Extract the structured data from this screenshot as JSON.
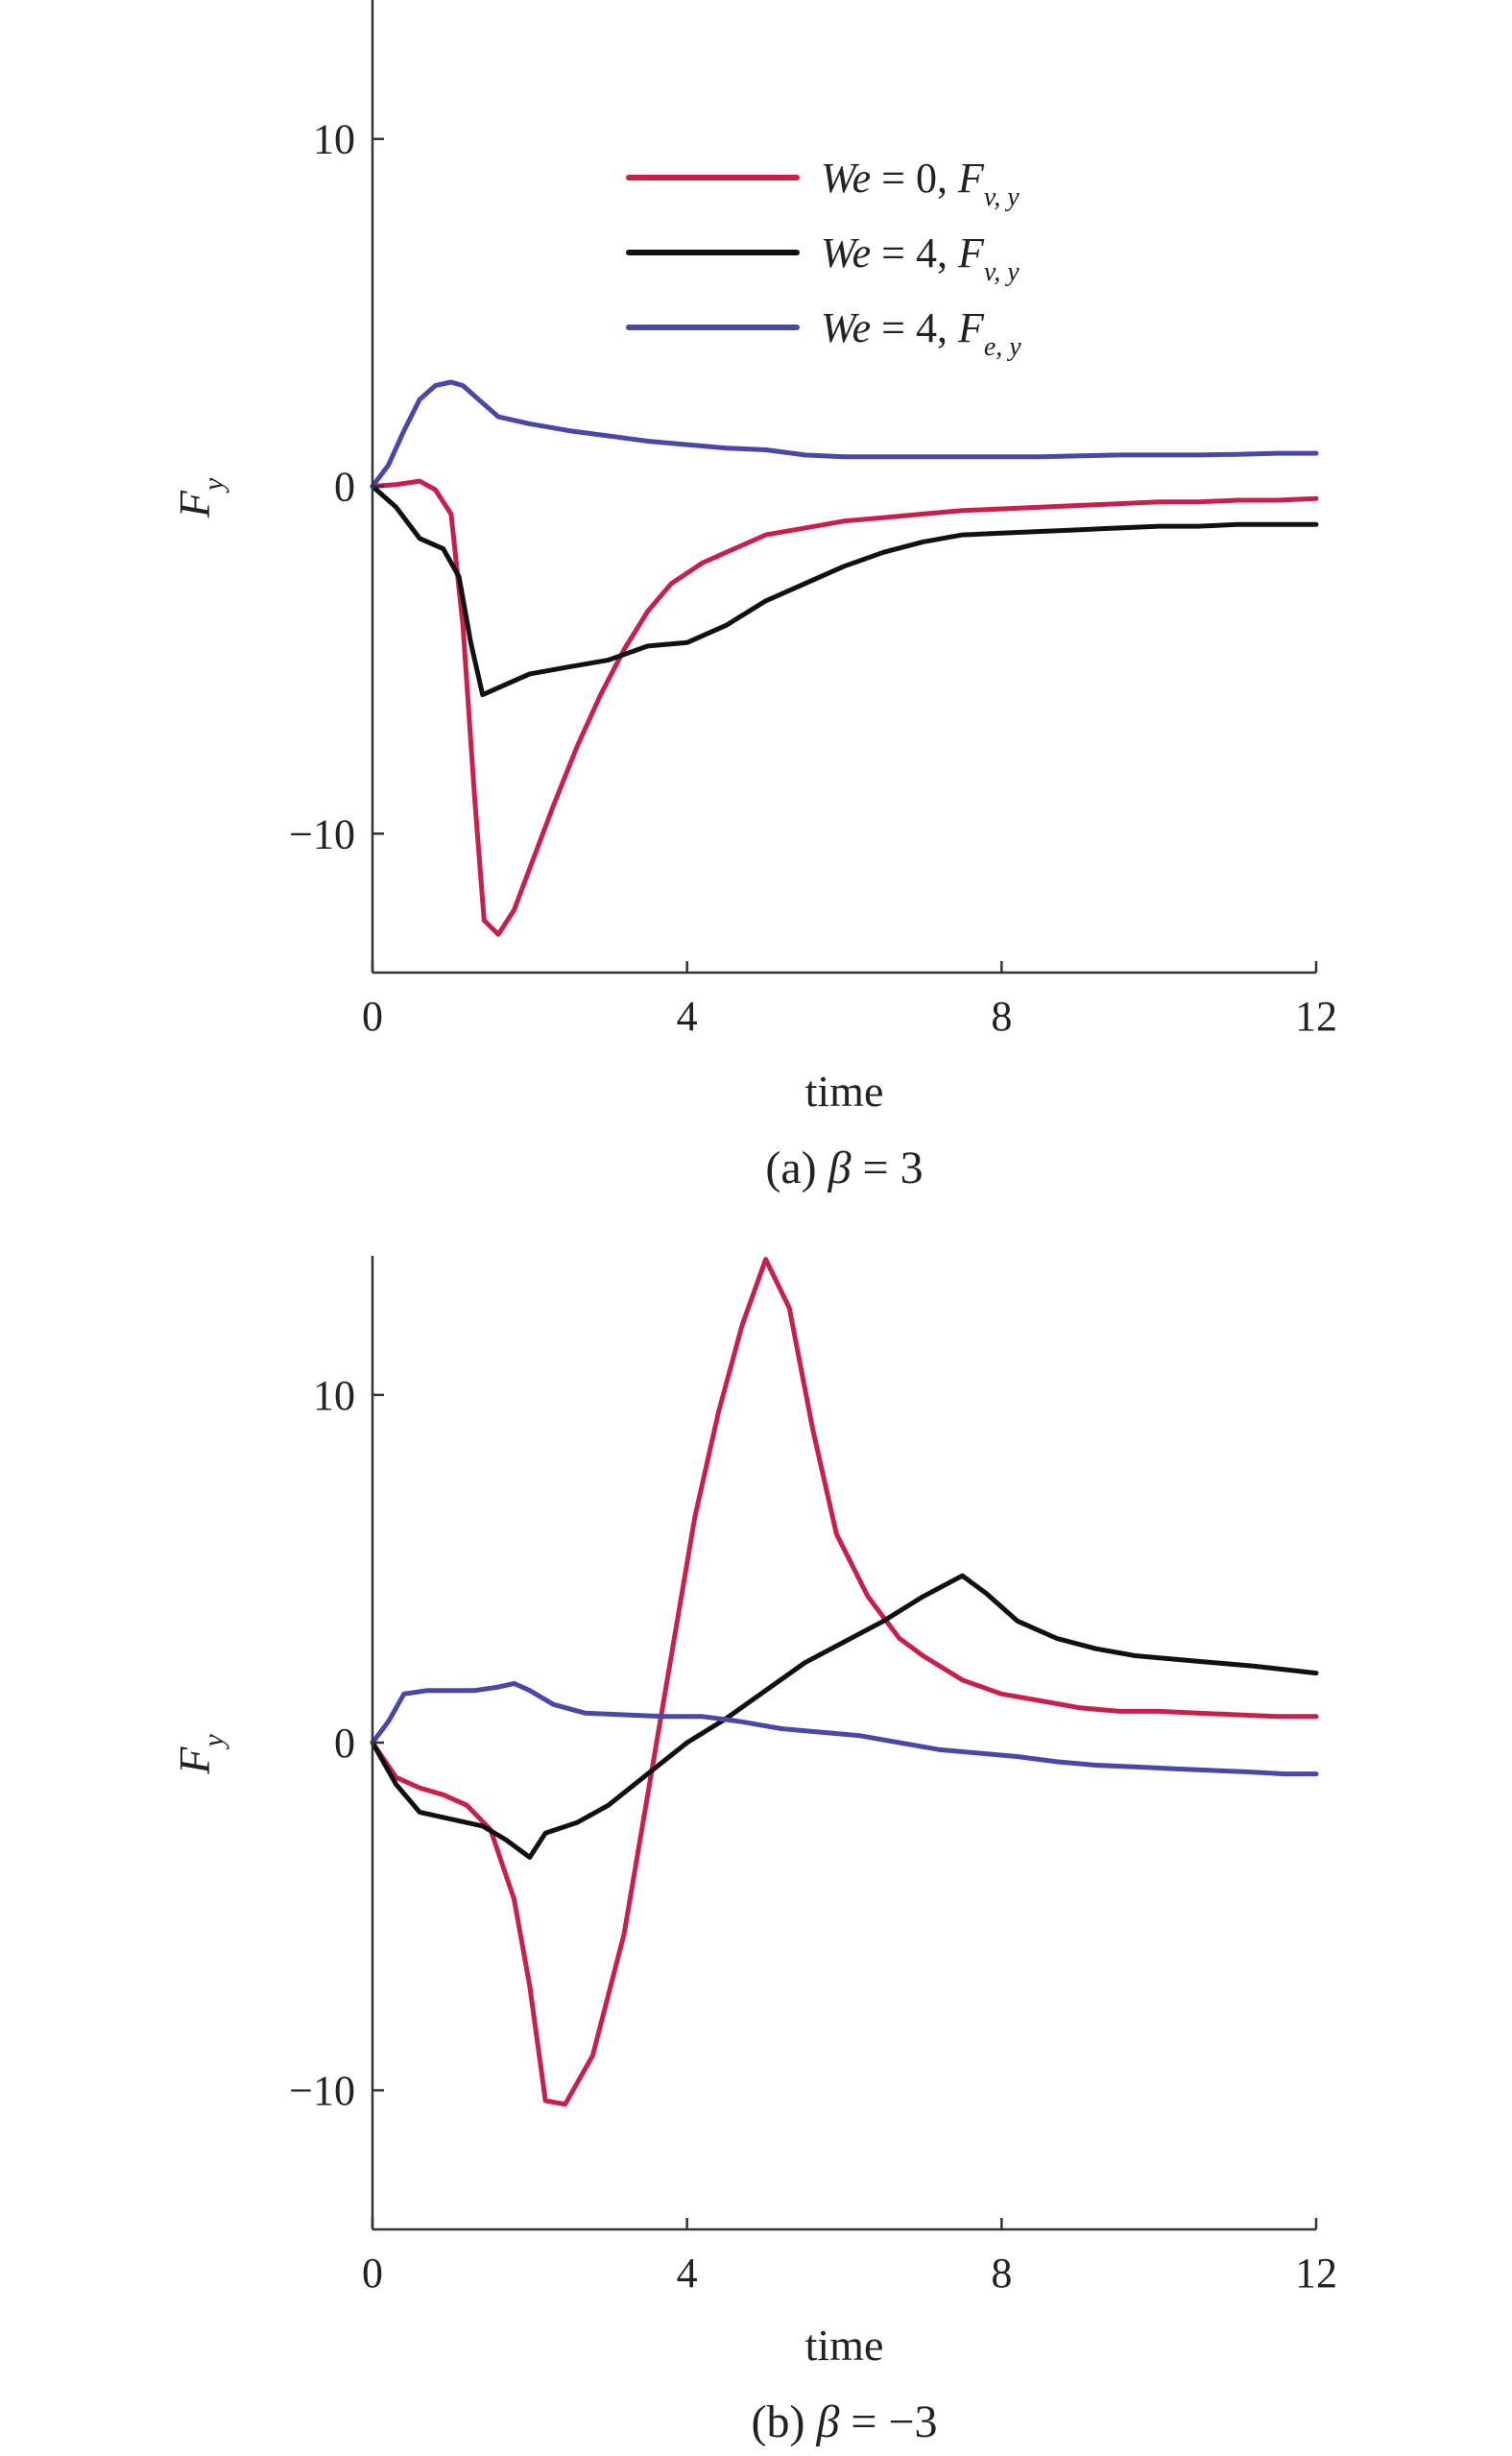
{
  "legend": {
    "entries": [
      {
        "we_label": "We",
        "eq": " = 0, ",
        "f": "F",
        "sub": "v, y",
        "color": "#c8204a"
      },
      {
        "we_label": "We",
        "eq": " = 4, ",
        "f": "F",
        "sub": "v, y",
        "color": "#111111"
      },
      {
        "we_label": "We",
        "eq": " = 4, ",
        "f": "F",
        "sub": "e, y",
        "color": "#4a47a8"
      }
    ]
  },
  "chart_data": [
    {
      "type": "line",
      "caption": {
        "prefix": "(a) ",
        "symbol": "β",
        "suffix": " = 3"
      },
      "xlabel": "time",
      "ylabel": {
        "main": "F",
        "sub": "y"
      },
      "xlim": [
        0,
        12
      ],
      "ylim": [
        -14,
        14
      ],
      "xticks": [
        0,
        4,
        8,
        12
      ],
      "yticks": [
        -10,
        0,
        10
      ],
      "ytick_labels": [
        "−10",
        "0",
        "10"
      ],
      "grid": false,
      "series": [
        {
          "color": "#c8204a",
          "points": [
            [
              0,
              0
            ],
            [
              0.3,
              0.05
            ],
            [
              0.6,
              0.15
            ],
            [
              0.8,
              -0.1
            ],
            [
              1.0,
              -0.8
            ],
            [
              1.15,
              -4
            ],
            [
              1.3,
              -9
            ],
            [
              1.42,
              -12.5
            ],
            [
              1.6,
              -12.9
            ],
            [
              1.8,
              -12.2
            ],
            [
              2.0,
              -11
            ],
            [
              2.3,
              -9.2
            ],
            [
              2.6,
              -7.5
            ],
            [
              2.9,
              -6
            ],
            [
              3.2,
              -4.7
            ],
            [
              3.5,
              -3.6
            ],
            [
              3.8,
              -2.8
            ],
            [
              4.2,
              -2.2
            ],
            [
              4.6,
              -1.8
            ],
            [
              5.0,
              -1.4
            ],
            [
              5.5,
              -1.2
            ],
            [
              6.0,
              -1.0
            ],
            [
              6.5,
              -0.9
            ],
            [
              7.0,
              -0.8
            ],
            [
              7.5,
              -0.7
            ],
            [
              8.0,
              -0.65
            ],
            [
              8.5,
              -0.6
            ],
            [
              9.0,
              -0.55
            ],
            [
              9.5,
              -0.5
            ],
            [
              10.0,
              -0.45
            ],
            [
              10.5,
              -0.45
            ],
            [
              11.0,
              -0.4
            ],
            [
              11.5,
              -0.4
            ],
            [
              12.0,
              -0.35
            ]
          ]
        },
        {
          "color": "#111111",
          "points": [
            [
              0,
              0
            ],
            [
              0.3,
              -0.6
            ],
            [
              0.6,
              -1.5
            ],
            [
              0.9,
              -1.8
            ],
            [
              1.1,
              -2.6
            ],
            [
              1.25,
              -4.5
            ],
            [
              1.4,
              -6.0
            ],
            [
              1.7,
              -5.7
            ],
            [
              2.0,
              -5.4
            ],
            [
              2.5,
              -5.2
            ],
            [
              3.0,
              -5.0
            ],
            [
              3.5,
              -4.6
            ],
            [
              4.0,
              -4.5
            ],
            [
              4.5,
              -4.0
            ],
            [
              5.0,
              -3.3
            ],
            [
              5.5,
              -2.8
            ],
            [
              6.0,
              -2.3
            ],
            [
              6.5,
              -1.9
            ],
            [
              7.0,
              -1.6
            ],
            [
              7.5,
              -1.4
            ],
            [
              8.0,
              -1.35
            ],
            [
              8.5,
              -1.3
            ],
            [
              9.0,
              -1.25
            ],
            [
              9.5,
              -1.2
            ],
            [
              10.0,
              -1.15
            ],
            [
              10.5,
              -1.15
            ],
            [
              11.0,
              -1.1
            ],
            [
              11.5,
              -1.1
            ],
            [
              12.0,
              -1.1
            ]
          ]
        },
        {
          "color": "#4a47a8",
          "points": [
            [
              0,
              0
            ],
            [
              0.2,
              0.6
            ],
            [
              0.4,
              1.6
            ],
            [
              0.6,
              2.5
            ],
            [
              0.8,
              2.9
            ],
            [
              1.0,
              3.0
            ],
            [
              1.15,
              2.9
            ],
            [
              1.35,
              2.5
            ],
            [
              1.6,
              2.0
            ],
            [
              2.0,
              1.8
            ],
            [
              2.5,
              1.6
            ],
            [
              3.0,
              1.45
            ],
            [
              3.5,
              1.3
            ],
            [
              4.0,
              1.2
            ],
            [
              4.5,
              1.1
            ],
            [
              5.0,
              1.05
            ],
            [
              5.5,
              0.9
            ],
            [
              6.0,
              0.85
            ],
            [
              6.5,
              0.85
            ],
            [
              7.0,
              0.85
            ],
            [
              7.5,
              0.85
            ],
            [
              8.0,
              0.85
            ],
            [
              8.5,
              0.85
            ],
            [
              9.0,
              0.88
            ],
            [
              9.5,
              0.9
            ],
            [
              10.0,
              0.9
            ],
            [
              10.5,
              0.9
            ],
            [
              11.0,
              0.92
            ],
            [
              11.5,
              0.95
            ],
            [
              12.0,
              0.95
            ]
          ]
        }
      ]
    },
    {
      "type": "line",
      "caption": {
        "prefix": "(b) ",
        "symbol": "β",
        "suffix": " = −3"
      },
      "xlabel": "time",
      "ylabel": {
        "main": "F",
        "sub": "y"
      },
      "xlim": [
        0,
        12
      ],
      "ylim": [
        -14,
        14
      ],
      "xticks": [
        0,
        4,
        8,
        12
      ],
      "yticks": [
        -10,
        0,
        10
      ],
      "ytick_labels": [
        "−10",
        "0",
        "10"
      ],
      "grid": false,
      "series": [
        {
          "color": "#c8204a",
          "points": [
            [
              0,
              0
            ],
            [
              0.3,
              -1.0
            ],
            [
              0.6,
              -1.3
            ],
            [
              0.9,
              -1.5
            ],
            [
              1.2,
              -1.8
            ],
            [
              1.5,
              -2.5
            ],
            [
              1.8,
              -4.5
            ],
            [
              2.0,
              -7.0
            ],
            [
              2.2,
              -10.3
            ],
            [
              2.45,
              -10.4
            ],
            [
              2.8,
              -9.0
            ],
            [
              3.2,
              -5.5
            ],
            [
              3.5,
              -1.5
            ],
            [
              3.8,
              2.5
            ],
            [
              4.1,
              6.5
            ],
            [
              4.4,
              9.5
            ],
            [
              4.7,
              12.0
            ],
            [
              5.0,
              13.9
            ],
            [
              5.3,
              12.5
            ],
            [
              5.6,
              9.0
            ],
            [
              5.9,
              6.0
            ],
            [
              6.3,
              4.2
            ],
            [
              6.7,
              3.0
            ],
            [
              7.0,
              2.5
            ],
            [
              7.5,
              1.8
            ],
            [
              8.0,
              1.4
            ],
            [
              8.5,
              1.2
            ],
            [
              9.0,
              1.0
            ],
            [
              9.5,
              0.9
            ],
            [
              10.0,
              0.9
            ],
            [
              10.5,
              0.85
            ],
            [
              11.0,
              0.8
            ],
            [
              11.5,
              0.75
            ],
            [
              12.0,
              0.75
            ]
          ]
        },
        {
          "color": "#111111",
          "points": [
            [
              0,
              0
            ],
            [
              0.3,
              -1.2
            ],
            [
              0.6,
              -2.0
            ],
            [
              1.0,
              -2.2
            ],
            [
              1.4,
              -2.4
            ],
            [
              1.7,
              -2.8
            ],
            [
              2.0,
              -3.3
            ],
            [
              2.2,
              -2.6
            ],
            [
              2.6,
              -2.3
            ],
            [
              3.0,
              -1.8
            ],
            [
              3.5,
              -0.9
            ],
            [
              4.0,
              0.0
            ],
            [
              4.5,
              0.7
            ],
            [
              5.0,
              1.5
            ],
            [
              5.5,
              2.3
            ],
            [
              6.0,
              2.9
            ],
            [
              6.5,
              3.5
            ],
            [
              7.0,
              4.2
            ],
            [
              7.5,
              4.8
            ],
            [
              7.8,
              4.3
            ],
            [
              8.2,
              3.5
            ],
            [
              8.7,
              3.0
            ],
            [
              9.2,
              2.7
            ],
            [
              9.7,
              2.5
            ],
            [
              10.2,
              2.4
            ],
            [
              10.7,
              2.3
            ],
            [
              11.2,
              2.2
            ],
            [
              11.6,
              2.1
            ],
            [
              12.0,
              2.0
            ]
          ]
        },
        {
          "color": "#4a47a8",
          "points": [
            [
              0,
              0
            ],
            [
              0.2,
              0.6
            ],
            [
              0.4,
              1.4
            ],
            [
              0.7,
              1.5
            ],
            [
              1.0,
              1.5
            ],
            [
              1.3,
              1.5
            ],
            [
              1.6,
              1.6
            ],
            [
              1.8,
              1.7
            ],
            [
              2.0,
              1.5
            ],
            [
              2.3,
              1.1
            ],
            [
              2.7,
              0.85
            ],
            [
              3.2,
              0.8
            ],
            [
              3.7,
              0.75
            ],
            [
              4.2,
              0.75
            ],
            [
              4.7,
              0.6
            ],
            [
              5.2,
              0.4
            ],
            [
              5.7,
              0.3
            ],
            [
              6.2,
              0.2
            ],
            [
              6.7,
              0.0
            ],
            [
              7.2,
              -0.2
            ],
            [
              7.7,
              -0.3
            ],
            [
              8.2,
              -0.4
            ],
            [
              8.7,
              -0.55
            ],
            [
              9.2,
              -0.65
            ],
            [
              9.7,
              -0.7
            ],
            [
              10.2,
              -0.75
            ],
            [
              10.7,
              -0.8
            ],
            [
              11.2,
              -0.85
            ],
            [
              11.6,
              -0.9
            ],
            [
              12.0,
              -0.9
            ]
          ]
        }
      ]
    }
  ]
}
